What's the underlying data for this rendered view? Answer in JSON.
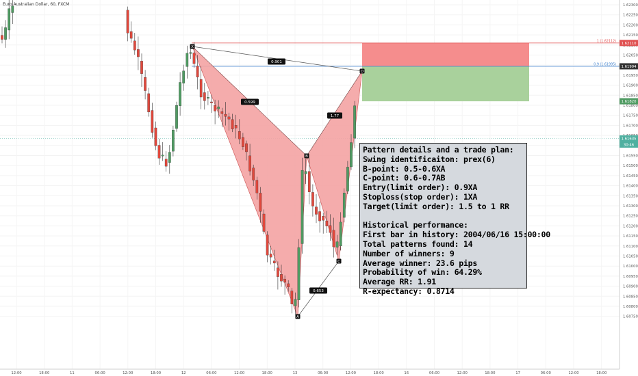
{
  "header": {
    "symbol_title": "Euro Australian Dollar, 60, FXCM"
  },
  "price_axis": {
    "labels": [
      "1.62300",
      "1.62250",
      "1.62200",
      "1.62150",
      "1.62100",
      "1.62050",
      "1.62000",
      "1.61950",
      "1.61900",
      "1.61850",
      "1.61800",
      "1.61750",
      "1.61700",
      "1.61650",
      "1.61600",
      "1.61550",
      "1.61500",
      "1.61450",
      "1.61400",
      "1.61350",
      "1.61300",
      "1.61250",
      "1.61200",
      "1.61150",
      "1.61100",
      "1.61050",
      "1.61000",
      "1.60950",
      "1.60900",
      "1.60850",
      "1.60800",
      "1.60750"
    ],
    "stop_price": "1.62110",
    "entry_price": "1.61994",
    "target_price": "1.61820",
    "current_price": "1.61635",
    "countdown": "30:46"
  },
  "time_axis": {
    "labels": [
      "12:00",
      "18:00",
      "11",
      "06:00",
      "12:00",
      "18:00",
      "12",
      "06:00",
      "12:00",
      "18:00",
      "13",
      "06:00",
      "12:00",
      "18:00",
      "16",
      "06:00",
      "12:00",
      "18:00",
      "17",
      "06:00",
      "12:00",
      "18:00"
    ]
  },
  "pattern": {
    "points": [
      "X",
      "A",
      "B",
      "C",
      "D"
    ],
    "ratios": {
      "xb": "0.599",
      "ac": "0.653",
      "bd": "1.77",
      "xd": "0.901"
    },
    "fib_stop_label": "1 (1.62112)",
    "fib_entry_label": "0.9 (1.61995)"
  },
  "info_panel": {
    "lines": [
      "Pattern details and a trade plan:",
      "Swing identificaiton: prex(6)",
      "B-point: 0.5-0.6XA",
      "C-point: 0.6-0.7AB",
      "Entry(limit order): 0.9XA",
      "Stoploss(stop order): 1XA",
      "Target(limit order): 1.5 to 1 RR",
      "",
      "Historical performance:",
      "First bar in history: 2004/06/16 15:00:00",
      "Total patterns found: 14",
      "Number of winners: 9",
      "Average winner: 23.6 pips",
      "Probability of win: 64.29%",
      "Average RR: 1.91",
      "R-expectancy: 0.8714"
    ]
  },
  "colors": {
    "bull": "#4f9b62",
    "bear": "#e0483c",
    "pattern_fill": "#f4a3a3",
    "stop_zone": "#f58d8d",
    "target_zone": "#a9d19c",
    "entry_line": "#3c7fcc",
    "stop_line": "#e05050"
  }
}
